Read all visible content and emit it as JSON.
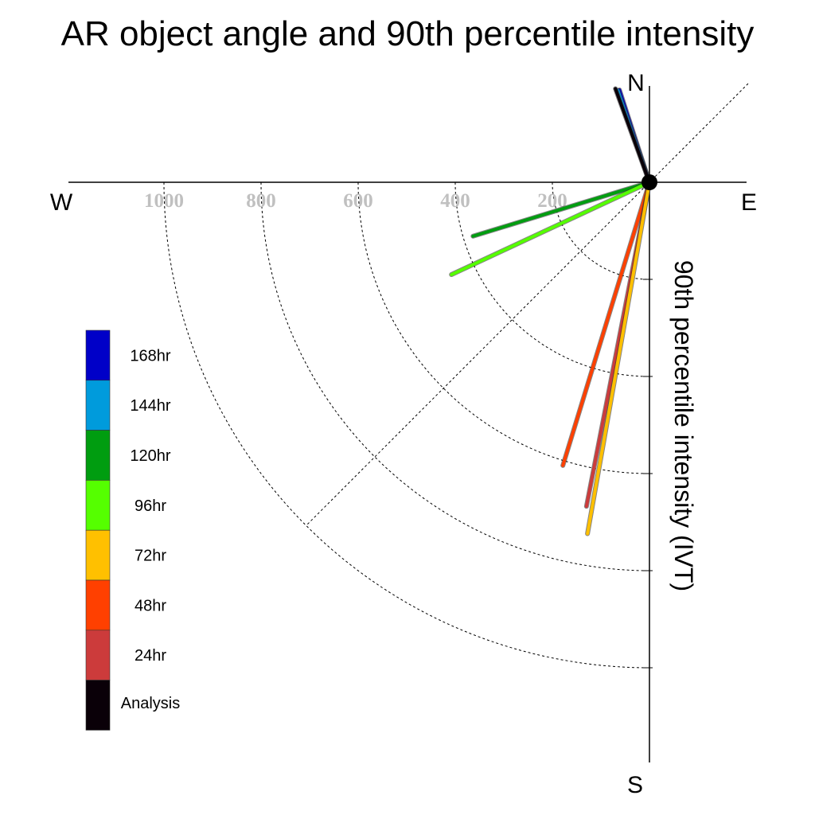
{
  "chart_data": {
    "type": "polar-vector",
    "title": "AR object angle and 90th percentile intensity",
    "ylabel": "90th percentile intensity (IVT)",
    "compass": {
      "north": "N",
      "south": "S",
      "east": "E",
      "west": "W"
    },
    "radial_ticks": [
      {
        "value": 200,
        "label": "200"
      },
      {
        "value": 400,
        "label": "400"
      },
      {
        "value": 600,
        "label": "600"
      },
      {
        "value": 800,
        "label": "800"
      },
      {
        "value": 1000,
        "label": "1000"
      }
    ],
    "radial_max": 1000,
    "grid": true,
    "legend_position": "left",
    "series": [
      {
        "name": "Analysis",
        "color": "#0a0008",
        "magnitude": 205,
        "bearing_deg": 340
      },
      {
        "name": "24hr",
        "color": "#cc3b3b",
        "magnitude": 680,
        "bearing_deg": 191
      },
      {
        "name": "48hr",
        "color": "#ff4000",
        "magnitude": 610,
        "bearing_deg": 197
      },
      {
        "name": "72hr",
        "color": "#ffc000",
        "magnitude": 735,
        "bearing_deg": 190
      },
      {
        "name": "96hr",
        "color": "#55ff00",
        "magnitude": 450,
        "bearing_deg": 245
      },
      {
        "name": "120hr",
        "color": "#009d10",
        "magnitude": 380,
        "bearing_deg": 253
      },
      {
        "name": "144hr",
        "color": "#009bdc",
        "magnitude": 200,
        "bearing_deg": 341
      },
      {
        "name": "168hr",
        "color": "#0000c8",
        "magnitude": 200,
        "bearing_deg": 342
      }
    ]
  }
}
